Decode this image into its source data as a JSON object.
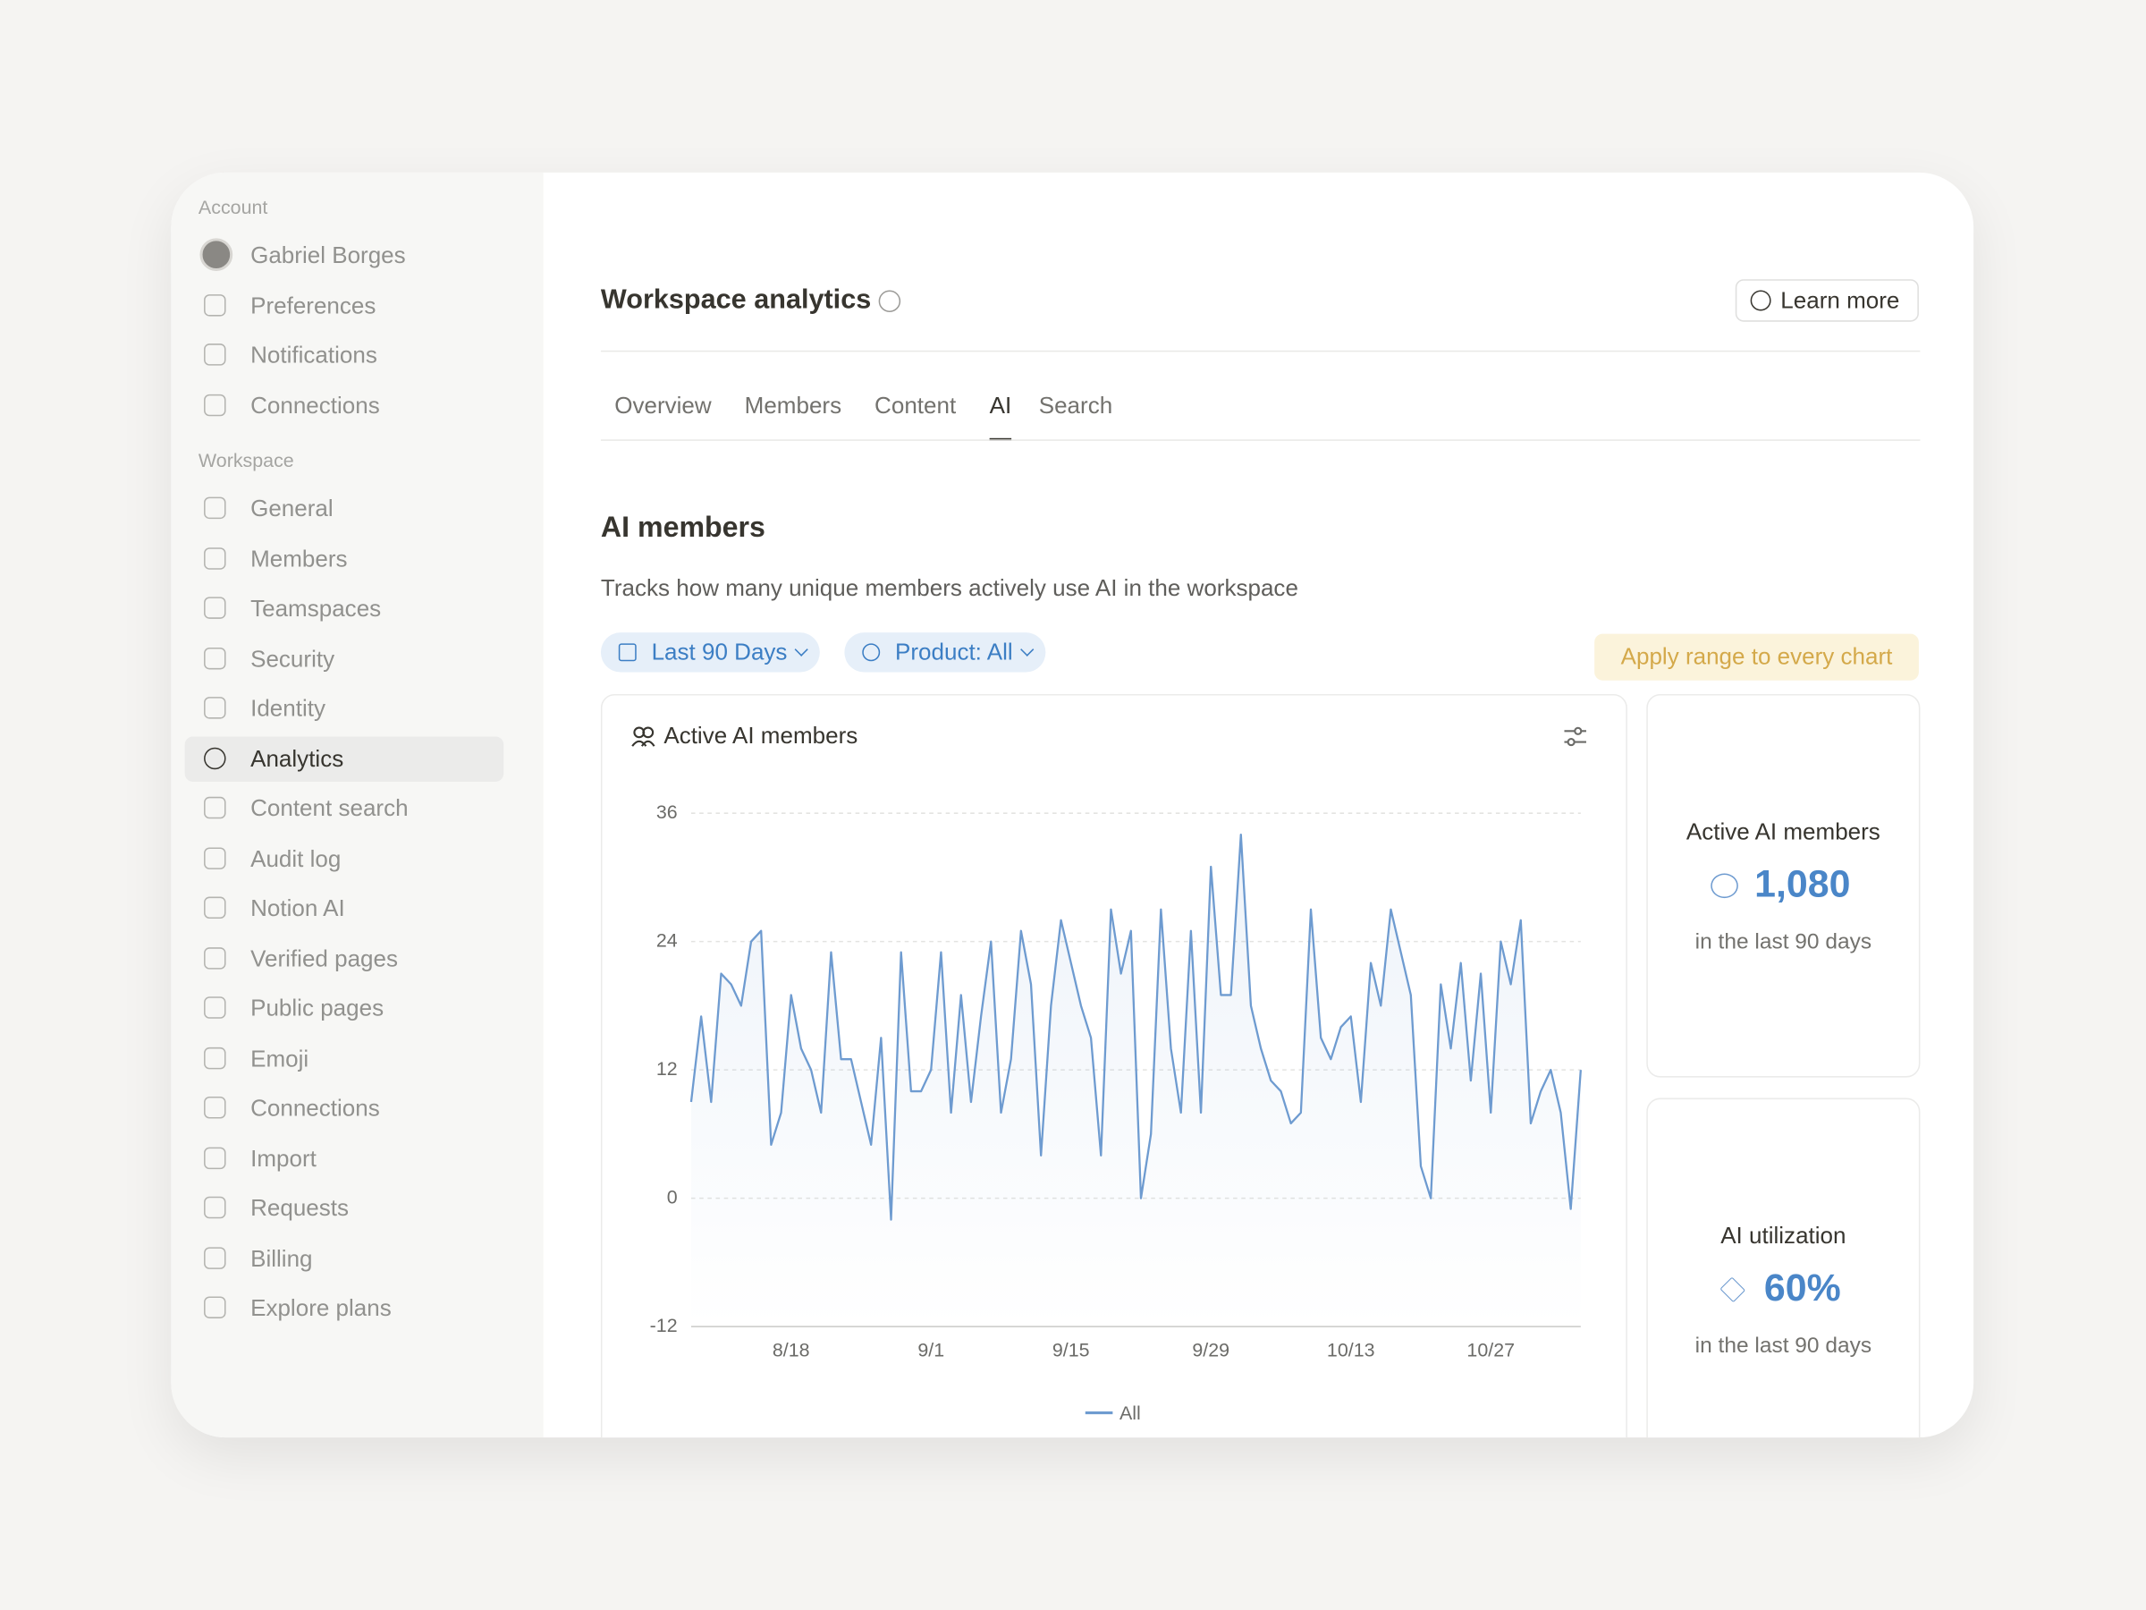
{
  "sidebar": {
    "sections": [
      {
        "label": "Account",
        "items": [
          "Gabriel Borges",
          "Preferences",
          "Notifications",
          "Connections"
        ]
      },
      {
        "label": "Workspace",
        "items": [
          "General",
          "Members",
          "Teamspaces",
          "Security",
          "Identity",
          "Analytics",
          "Content search",
          "Audit log",
          "Notion AI",
          "Verified pages",
          "Public pages",
          "Emoji",
          "Connections",
          "Import",
          "Requests",
          "Billing",
          "Explore plans"
        ]
      }
    ],
    "active": "Analytics"
  },
  "header": {
    "title": "Workspace analytics",
    "button": "Learn more"
  },
  "tabs": {
    "items": [
      "Overview",
      "Members",
      "Content",
      "AI",
      "Search"
    ],
    "active": "AI"
  },
  "section": {
    "title": "AI members",
    "description": "Tracks how many unique members actively use AI in the workspace"
  },
  "filters": {
    "items": [
      "Last 90 Days",
      "Product: All"
    ],
    "apply": "Apply range to every chart"
  },
  "chart_card": {
    "title": "Active AI members",
    "chart_data": {
      "type": "line",
      "x": [
        "8/8",
        "8/9",
        "8/10",
        "8/11",
        "8/12",
        "8/13",
        "8/14",
        "8/15",
        "8/16",
        "8/17",
        "8/18",
        "8/19",
        "8/20",
        "8/21",
        "8/22",
        "8/23",
        "8/24",
        "8/25",
        "8/26",
        "8/27",
        "8/28",
        "8/29",
        "8/30",
        "8/31",
        "9/1",
        "9/2",
        "9/3",
        "9/4",
        "9/5",
        "9/6",
        "9/7",
        "9/8",
        "9/9",
        "9/10",
        "9/11",
        "9/12",
        "9/13",
        "9/14",
        "9/15",
        "9/16",
        "9/17",
        "9/18",
        "9/19",
        "9/20",
        "9/21",
        "9/22",
        "9/23",
        "9/24",
        "9/25",
        "9/26",
        "9/27",
        "9/28",
        "9/29",
        "9/30",
        "10/1",
        "10/2",
        "10/3",
        "10/4",
        "10/5",
        "10/6",
        "10/7",
        "10/8",
        "10/9",
        "10/10",
        "10/11",
        "10/12",
        "10/13",
        "10/14",
        "10/15",
        "10/16",
        "10/17",
        "10/18",
        "10/19",
        "10/20",
        "10/21",
        "10/22",
        "10/23",
        "10/24",
        "10/25",
        "10/26",
        "10/27",
        "10/28",
        "10/29",
        "10/30",
        "10/31",
        "11/1",
        "11/2",
        "11/3",
        "11/4",
        "11/5"
      ],
      "series": [
        {
          "name": "All",
          "color": "#6e9bd0",
          "values": [
            9,
            17,
            9,
            21,
            20,
            18,
            24,
            25,
            5,
            8,
            19,
            14,
            12,
            8,
            23,
            13,
            13,
            9,
            5,
            15,
            -2,
            23,
            10,
            10,
            12,
            23,
            8,
            19,
            9,
            17,
            24,
            8,
            13,
            25,
            20,
            4,
            18,
            26,
            22,
            18,
            15,
            4,
            27,
            21,
            25,
            0,
            6,
            27,
            14,
            8,
            25,
            8,
            31,
            19,
            19,
            34,
            18,
            14,
            11,
            10,
            7,
            8,
            27,
            15,
            13,
            16,
            17,
            9,
            22,
            18,
            27,
            23,
            19,
            3,
            0,
            20,
            14,
            22,
            11,
            21,
            8,
            24,
            20,
            26,
            7,
            10,
            12,
            8,
            -1,
            12
          ]
        }
      ],
      "ylim": [
        -12,
        36
      ],
      "yticks": [
        -12,
        0,
        12,
        24,
        36
      ],
      "xticks": [
        "8/18",
        "9/1",
        "9/15",
        "9/29",
        "10/13",
        "10/27"
      ],
      "grid": true,
      "legend": "bottom"
    }
  },
  "stats": [
    {
      "title": "Active AI members",
      "value": "1,080",
      "caption": "in the last 90 days"
    },
    {
      "title": "AI utilization",
      "value": "60%",
      "caption": "in the last 90 days"
    }
  ]
}
